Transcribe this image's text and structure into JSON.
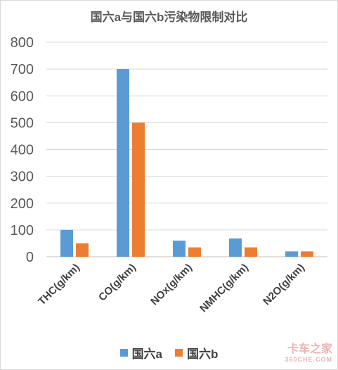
{
  "chart_data": {
    "type": "bar",
    "title": "国六a与国六b污染物限制对比",
    "categories": [
      "THC(g/km)",
      "CO(g/km)",
      "NOx(g/km)",
      "NMHC(g/km)",
      "N2O(g/km)"
    ],
    "series": [
      {
        "name": "国六a",
        "values": [
          100,
          700,
          60,
          68,
          20
        ]
      },
      {
        "name": "国六b",
        "values": [
          50,
          500,
          35,
          35,
          20
        ]
      }
    ],
    "ylim": [
      0,
      800
    ],
    "yticks": [
      0,
      100,
      200,
      300,
      400,
      500,
      600,
      700,
      800
    ],
    "grid": true,
    "legend": "bottom",
    "colors": [
      "#5b9bd5",
      "#ed7d31"
    ]
  },
  "watermark": {
    "main": "卡车之家",
    "sub": "360CHE.COM"
  }
}
